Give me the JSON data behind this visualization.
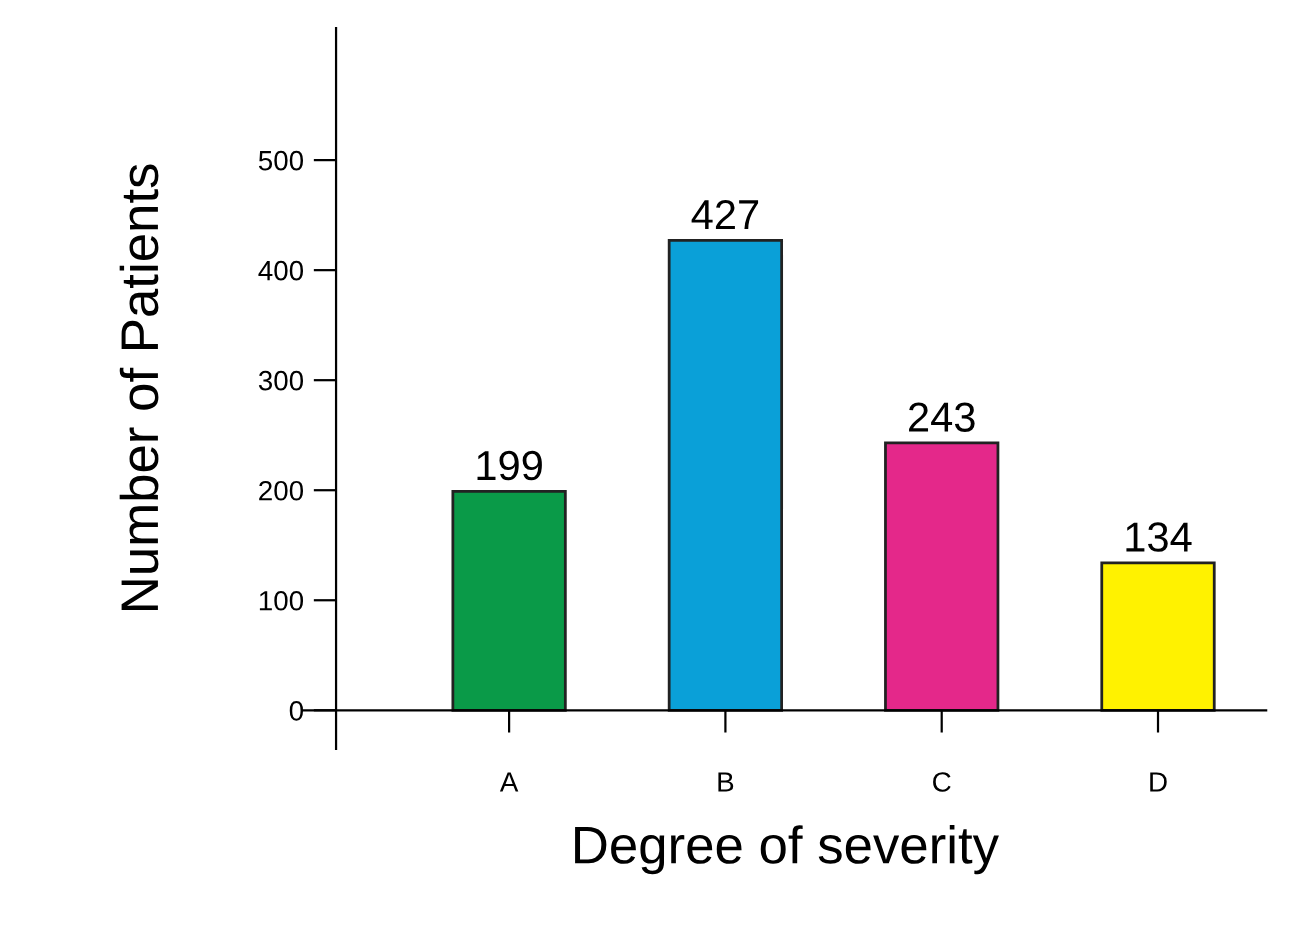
{
  "chart_data": {
    "type": "bar",
    "xlabel": "Degree of severity",
    "ylabel": "Number of Patients",
    "categories": [
      "A",
      "B",
      "C",
      "D"
    ],
    "values": [
      199,
      427,
      243,
      134
    ],
    "colors": [
      "#0a9a48",
      "#0aa0d8",
      "#e4288a",
      "#fff200"
    ],
    "ylim": [
      -35,
      620
    ],
    "yticks": [
      0,
      100,
      200,
      300,
      400,
      500
    ],
    "data_labels": true,
    "grid": false,
    "legend": false
  }
}
